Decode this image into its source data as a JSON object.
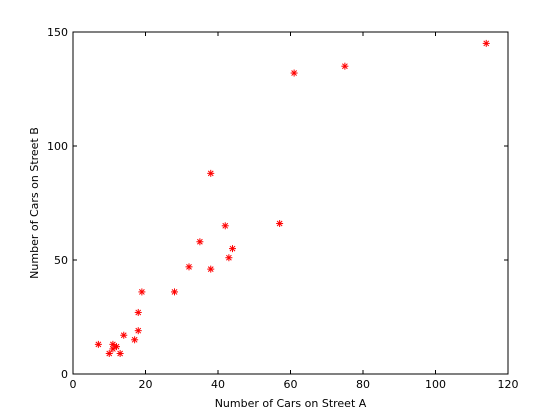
{
  "chart_data": {
    "type": "scatter",
    "title": "",
    "xlabel": "Number of Cars on Street A",
    "ylabel": "Number of Cars on Street B",
    "xlim": [
      0,
      120
    ],
    "ylim": [
      0,
      150
    ],
    "xticks": [
      0,
      20,
      40,
      60,
      80,
      100,
      120
    ],
    "yticks": [
      0,
      50,
      100,
      150
    ],
    "grid": false,
    "legend": "none",
    "marker": "asterisk",
    "marker_color": "#ff0000",
    "series": [
      {
        "points": [
          [
            7,
            13
          ],
          [
            10,
            9
          ],
          [
            11,
            11
          ],
          [
            11,
            13
          ],
          [
            12,
            12
          ],
          [
            13,
            9
          ],
          [
            14,
            17
          ],
          [
            17,
            15
          ],
          [
            18,
            19
          ],
          [
            18,
            27
          ],
          [
            19,
            36
          ],
          [
            28,
            36
          ],
          [
            32,
            47
          ],
          [
            35,
            58
          ],
          [
            38,
            46
          ],
          [
            38,
            88
          ],
          [
            42,
            65
          ],
          [
            43,
            51
          ],
          [
            44,
            55
          ],
          [
            57,
            66
          ],
          [
            61,
            132
          ],
          [
            75,
            135
          ],
          [
            114,
            145
          ]
        ]
      }
    ]
  }
}
